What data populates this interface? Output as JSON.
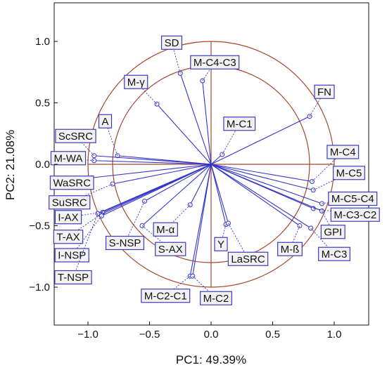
{
  "chart_data": {
    "type": "scatter",
    "subtype": "pca-correlation-circle",
    "xlabel": "PC1: 49.39%",
    "ylabel": "PC2: 21.08%",
    "xlim": [
      -1.28,
      1.28
    ],
    "ylim": [
      -1.28,
      1.28
    ],
    "xticks": [
      -1.0,
      -0.5,
      0.0,
      0.5,
      1.0
    ],
    "xtick_labels": [
      "−1.0",
      "−0.5",
      "0.0",
      "0.5",
      "1.0"
    ],
    "yticks": [
      -1.0,
      -0.5,
      0.0,
      0.5,
      1.0
    ],
    "ytick_labels": [
      "−1.0",
      "−0.5",
      "0.0",
      "0.5",
      "1.0"
    ],
    "circles": [
      1.0,
      0.8
    ],
    "colors": {
      "vectors": "#3333cc",
      "circles": "#a8452a",
      "label_border": "#3b3bbf",
      "label_fill": "#f2f2f2"
    },
    "points": [
      {
        "name": "SD",
        "x": -0.25,
        "y": 0.74,
        "label_pos": [
          -0.32,
          0.99
        ]
      },
      {
        "name": "M-C4-C3",
        "x": -0.07,
        "y": 0.68,
        "label_pos": [
          0.03,
          0.83
        ]
      },
      {
        "name": "M-γ",
        "x": -0.44,
        "y": 0.49,
        "label_pos": [
          -0.61,
          0.67
        ]
      },
      {
        "name": "FN",
        "x": 0.8,
        "y": 0.39,
        "label_pos": [
          0.92,
          0.59
        ]
      },
      {
        "name": "A",
        "x": -0.76,
        "y": 0.07,
        "label_pos": [
          -0.86,
          0.35
        ]
      },
      {
        "name": "M-C1",
        "x": 0.09,
        "y": 0.08,
        "label_pos": [
          0.23,
          0.33
        ]
      },
      {
        "name": "ScSRC",
        "x": -0.95,
        "y": 0.07,
        "label_pos": [
          -1.1,
          0.23
        ]
      },
      {
        "name": "M-WA",
        "x": -0.95,
        "y": 0.03,
        "label_pos": [
          -1.16,
          0.05
        ]
      },
      {
        "name": "M-C4",
        "x": 0.82,
        "y": -0.14,
        "label_pos": [
          1.07,
          0.1
        ]
      },
      {
        "name": "M-C5",
        "x": 0.83,
        "y": -0.21,
        "label_pos": [
          1.12,
          -0.07
        ]
      },
      {
        "name": "WaSRC",
        "x": -0.97,
        "y": -0.11,
        "label_pos": [
          -1.13,
          -0.15
        ]
      },
      {
        "name": "SuSRC",
        "x": -0.8,
        "y": -0.16,
        "label_pos": [
          -1.15,
          -0.31
        ]
      },
      {
        "name": "M-C5-C4",
        "x": 0.9,
        "y": -0.32,
        "label_pos": [
          1.15,
          -0.28
        ]
      },
      {
        "name": "M-C3-C2",
        "x": 0.83,
        "y": -0.36,
        "label_pos": [
          1.17,
          -0.41
        ]
      },
      {
        "name": "GPI",
        "x": 0.9,
        "y": -0.38,
        "label_pos": [
          0.99,
          -0.55
        ]
      },
      {
        "name": "M-C3",
        "x": 0.81,
        "y": -0.52,
        "label_pos": [
          1.0,
          -0.73
        ]
      },
      {
        "name": "M-ß",
        "x": 0.72,
        "y": -0.5,
        "label_pos": [
          0.64,
          -0.69
        ]
      },
      {
        "name": "I-AX",
        "x": -0.88,
        "y": -0.39,
        "label_pos": [
          -1.16,
          -0.43
        ]
      },
      {
        "name": "T-AX",
        "x": -0.9,
        "y": -0.41,
        "label_pos": [
          -1.16,
          -0.59
        ]
      },
      {
        "name": "I-NSP",
        "x": -0.89,
        "y": -0.42,
        "label_pos": [
          -1.13,
          -0.74
        ]
      },
      {
        "name": "T-NSP",
        "x": -0.92,
        "y": -0.4,
        "label_pos": [
          -1.12,
          -0.92
        ]
      },
      {
        "name": "S-NSP",
        "x": -0.54,
        "y": -0.3,
        "label_pos": [
          -0.7,
          -0.64
        ]
      },
      {
        "name": "S-AX",
        "x": -0.56,
        "y": -0.5,
        "label_pos": [
          -0.33,
          -0.69
        ]
      },
      {
        "name": "M-α",
        "x": -0.17,
        "y": -0.33,
        "label_pos": [
          -0.37,
          -0.53
        ]
      },
      {
        "name": "Y",
        "x": 0.12,
        "y": -0.49,
        "label_pos": [
          0.08,
          -0.65
        ]
      },
      {
        "name": "LaSRC",
        "x": 0.14,
        "y": -0.48,
        "label_pos": [
          0.3,
          -0.77
        ]
      },
      {
        "name": "M-C2-C1",
        "x": -0.17,
        "y": -0.91,
        "label_pos": [
          -0.37,
          -1.07
        ]
      },
      {
        "name": "M-C2",
        "x": -0.15,
        "y": -0.91,
        "label_pos": [
          0.04,
          -1.09
        ]
      }
    ]
  }
}
